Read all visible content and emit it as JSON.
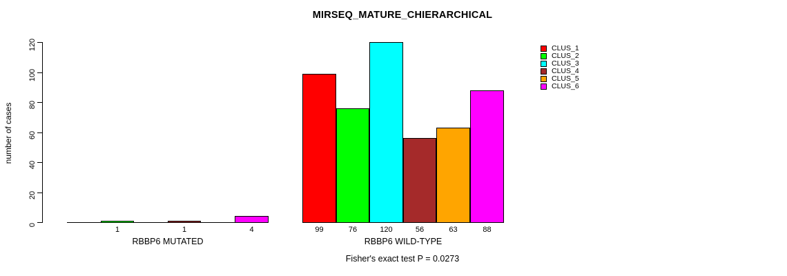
{
  "window": {
    "background": "#ffffff",
    "foreground": "#000000"
  },
  "chart_data": {
    "type": "bar",
    "title": "MIRSEQ_MATURE_CHIERARCHICAL",
    "ylabel": "number of cases",
    "xlabel": "",
    "ylim": [
      0,
      120
    ],
    "yticks": [
      0,
      20,
      40,
      60,
      80,
      100,
      120
    ],
    "grid": false,
    "legend_position": "top-right",
    "legend": [
      {
        "label": "CLUS_1",
        "color": "#FF0000"
      },
      {
        "label": "CLUS_2",
        "color": "#00FF00"
      },
      {
        "label": "CLUS_3",
        "color": "#00FFFF"
      },
      {
        "label": "CLUS_4",
        "color": "#A52A2A"
      },
      {
        "label": "CLUS_5",
        "color": "#FFA500"
      },
      {
        "label": "CLUS_6",
        "color": "#FF00FF"
      }
    ],
    "bar_colors": [
      "#FF0000",
      "#00FF00",
      "#00FFFF",
      "#A52A2A",
      "#FFA500",
      "#FF00FF"
    ],
    "groups": [
      {
        "label": "RBBP6 MUTATED",
        "values": [
          0,
          1,
          0,
          1,
          0,
          4
        ],
        "bar_labels": [
          "",
          "1",
          "",
          "1",
          "",
          "4"
        ]
      },
      {
        "label": "RBBP6 WILD-TYPE",
        "values": [
          99,
          76,
          120,
          56,
          63,
          88
        ],
        "bar_labels": [
          "99",
          "76",
          "120",
          "56",
          "63",
          "88"
        ]
      }
    ],
    "footnote": "Fisher's exact test P = 0.0273"
  }
}
